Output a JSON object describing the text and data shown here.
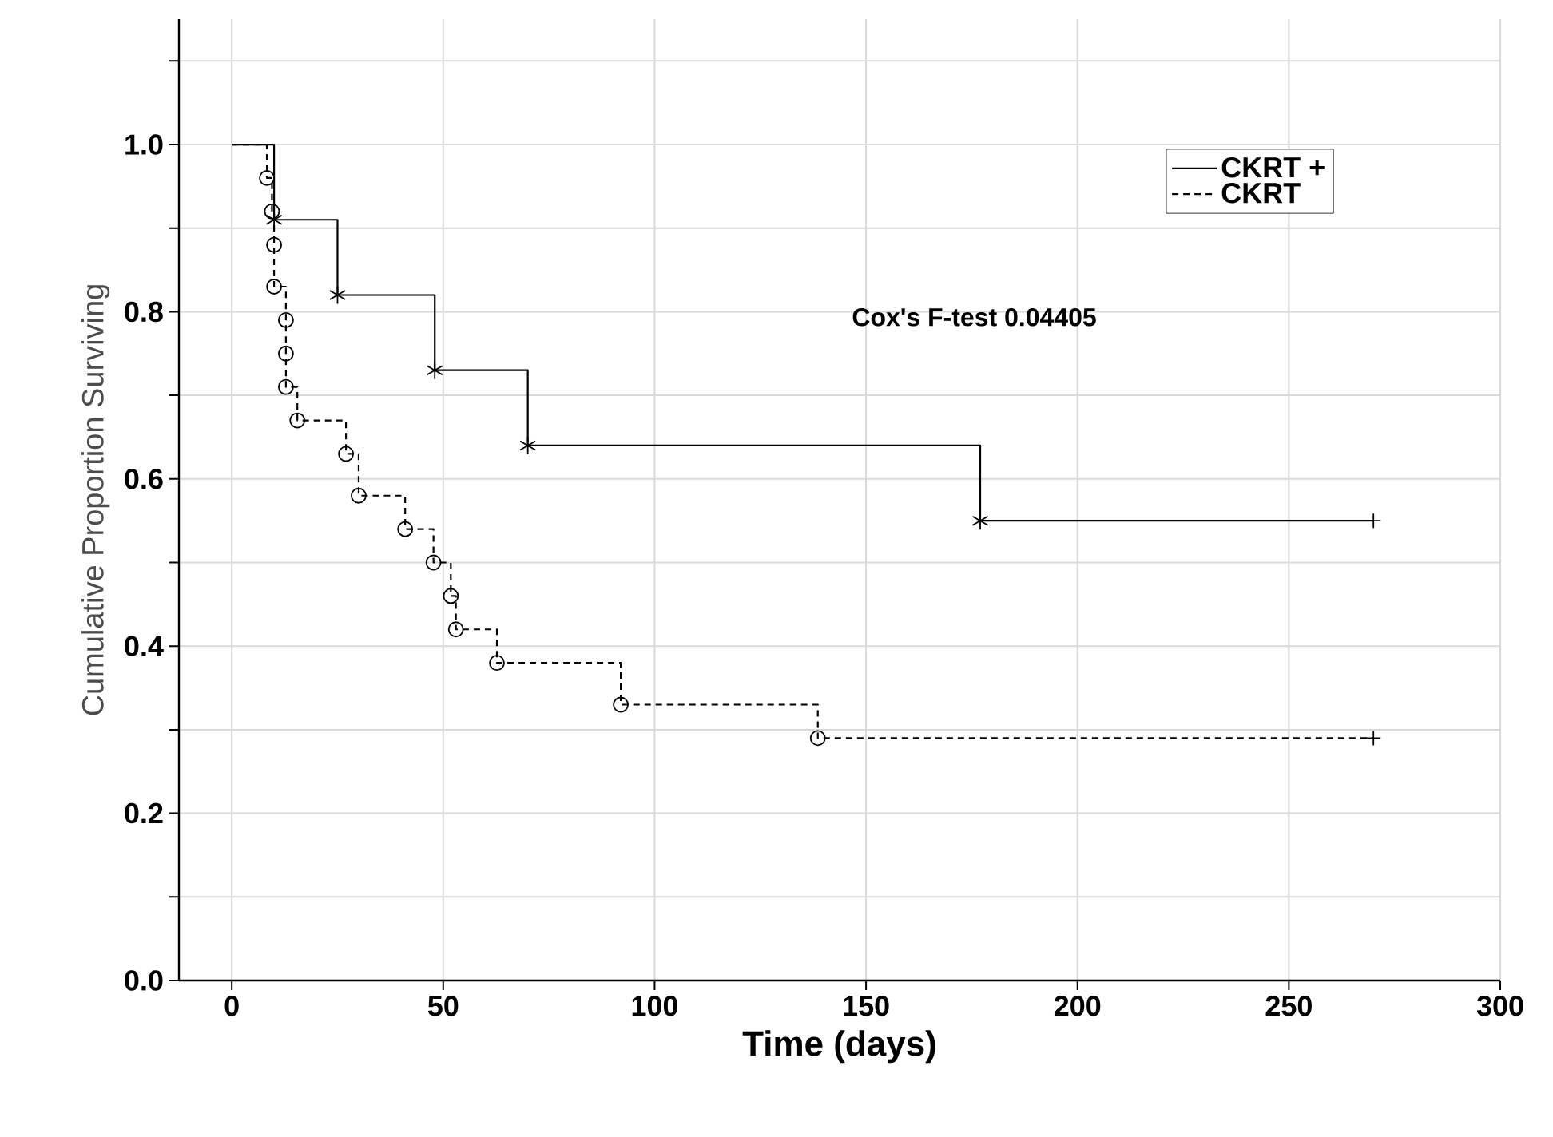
{
  "chart_data": {
    "type": "step",
    "xlabel": "Time (days)",
    "ylabel": "Cumulative Proportion Surviving",
    "xlim": [
      -12.5,
      300
    ],
    "xticks": [
      0,
      50,
      100,
      150,
      200,
      250,
      300
    ],
    "ylim": [
      0,
      1.15
    ],
    "yticks": [
      {
        "value": 0,
        "label": "0.0"
      },
      {
        "value": 0.1,
        "label": null
      },
      {
        "value": 0.2,
        "label": "0.2"
      },
      {
        "value": 0.3,
        "label": null
      },
      {
        "value": 0.4,
        "label": "0.4"
      },
      {
        "value": 0.5,
        "label": null
      },
      {
        "value": 0.6,
        "label": "0.6"
      },
      {
        "value": 0.7,
        "label": null
      },
      {
        "value": 0.8,
        "label": "0.8"
      },
      {
        "value": 0.9,
        "label": null
      },
      {
        "value": 1.0,
        "label": "1.0"
      },
      {
        "value": 1.1,
        "label": null
      }
    ],
    "grid": true,
    "legend": "top right",
    "annotations": [
      "Cox's F-test   0.04405"
    ],
    "series": [
      {
        "name": "CKRT +",
        "color": "#000000",
        "line_style": "solid",
        "marker": "cross",
        "x": [
          0,
          10,
          25,
          48,
          70,
          177,
          270
        ],
        "values": [
          1.0,
          0.91,
          0.82,
          0.73,
          0.64,
          0.55,
          0.55
        ]
      },
      {
        "name": "CKRT",
        "color": "#000000",
        "line_style": "dashed",
        "marker": "circle",
        "x": [
          0,
          8.3,
          9.5,
          10,
          10,
          12.8,
          12.8,
          12.8,
          15.5,
          27,
          30,
          41,
          47.7,
          51.8,
          53,
          62.7,
          92,
          138.6,
          270
        ],
        "values": [
          1.0,
          0.96,
          0.92,
          0.88,
          0.83,
          0.79,
          0.75,
          0.71,
          0.67,
          0.63,
          0.58,
          0.54,
          0.5,
          0.46,
          0.42,
          0.38,
          0.33,
          0.29,
          0.29
        ]
      },
      {
        "type": "scatter",
        "color": "#000000",
        "marker": "cross",
        "x": [
          270,
          270
        ],
        "values": [
          0.55,
          0.29
        ]
      }
    ]
  }
}
